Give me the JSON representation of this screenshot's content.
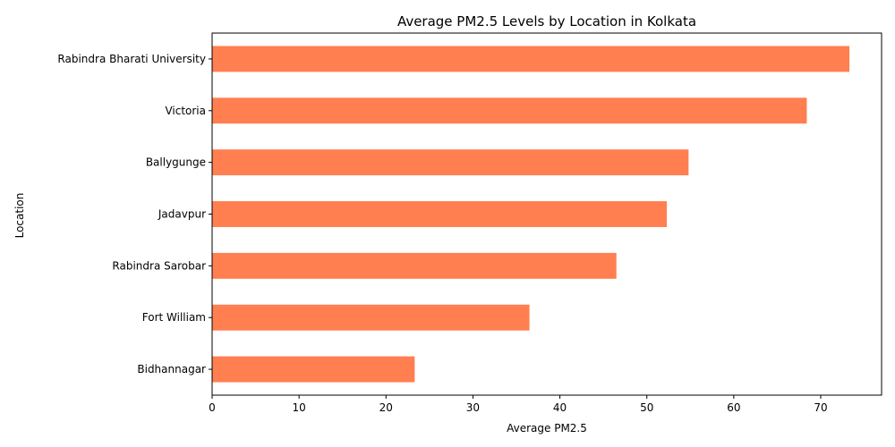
{
  "chart_data": {
    "type": "bar",
    "orientation": "horizontal",
    "title": "Average PM2.5 Levels by Location in Kolkata",
    "xlabel": "Average PM2.5",
    "ylabel": "Location",
    "categories": [
      "Bidhannagar",
      "Fort William",
      "Rabindra Sarobar",
      "Jadavpur",
      "Ballygunge",
      "Victoria",
      "Rabindra Bharati University"
    ],
    "values": [
      23.3,
      36.5,
      46.5,
      52.3,
      54.8,
      68.4,
      73.3
    ],
    "xlim": [
      0,
      77
    ],
    "xticks": [
      0,
      10,
      20,
      30,
      40,
      50,
      60,
      70
    ],
    "bar_color": "#ff7f50",
    "grid": false,
    "legend": false
  }
}
